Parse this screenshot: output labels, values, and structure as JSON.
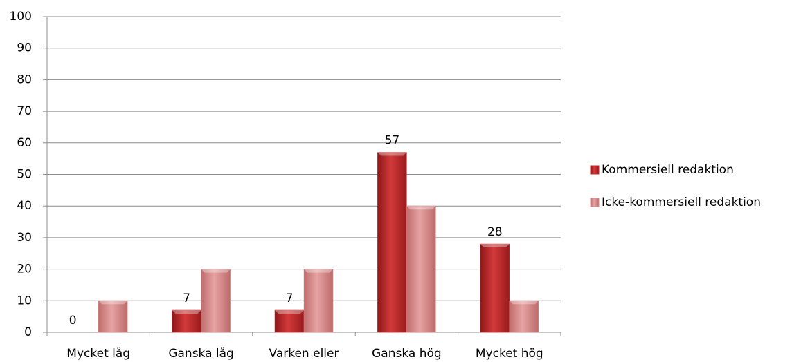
{
  "chart_data": {
    "type": "bar",
    "categories": [
      "Mycket låg",
      "Ganska låg",
      "Varken eller",
      "Ganska hög",
      "Mycket hög"
    ],
    "series": [
      {
        "name": "Kommersiell redaktion",
        "color": "#c0282a",
        "values": [
          0,
          7,
          7,
          57,
          28
        ],
        "data_labels": true
      },
      {
        "name": "Icke-kommersiell redaktion",
        "color": "#d98a8a",
        "values": [
          10,
          20,
          20,
          40,
          10
        ],
        "data_labels": false
      }
    ],
    "ylim": [
      0,
      100
    ],
    "yticks": [
      0,
      10,
      20,
      30,
      40,
      50,
      60,
      70,
      80,
      90,
      100
    ],
    "grid": true,
    "legend": "right"
  }
}
